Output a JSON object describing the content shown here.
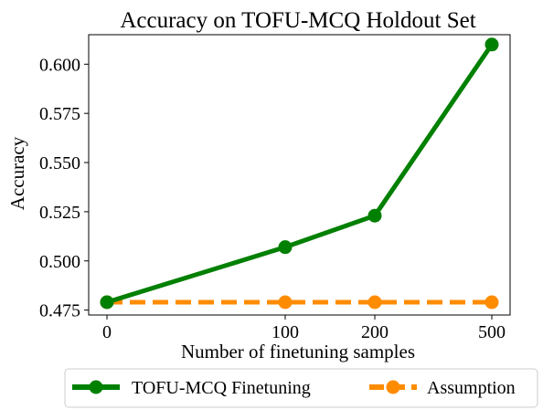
{
  "chart_data": {
    "type": "line",
    "title": "Accuracy on TOFU-MCQ Holdout Set",
    "xlabel": "Number of finetuning samples",
    "ylabel": "Accuracy",
    "x": [
      "0",
      "100",
      "200",
      "500"
    ],
    "ylim": [
      0.4725,
      0.615
    ],
    "yticks": [
      "0.475",
      "0.500",
      "0.525",
      "0.550",
      "0.575",
      "0.600"
    ],
    "grid": false,
    "legend_position": "below-center",
    "series": [
      {
        "name": "TOFU-MCQ Finetuning",
        "values": [
          0.479,
          0.507,
          0.523,
          0.61
        ],
        "color": "#008000",
        "style": "solid"
      },
      {
        "name": "Assumption",
        "values": [
          0.479,
          0.479,
          0.479,
          0.479
        ],
        "color": "#ff8c00",
        "style": "dashed"
      }
    ]
  }
}
